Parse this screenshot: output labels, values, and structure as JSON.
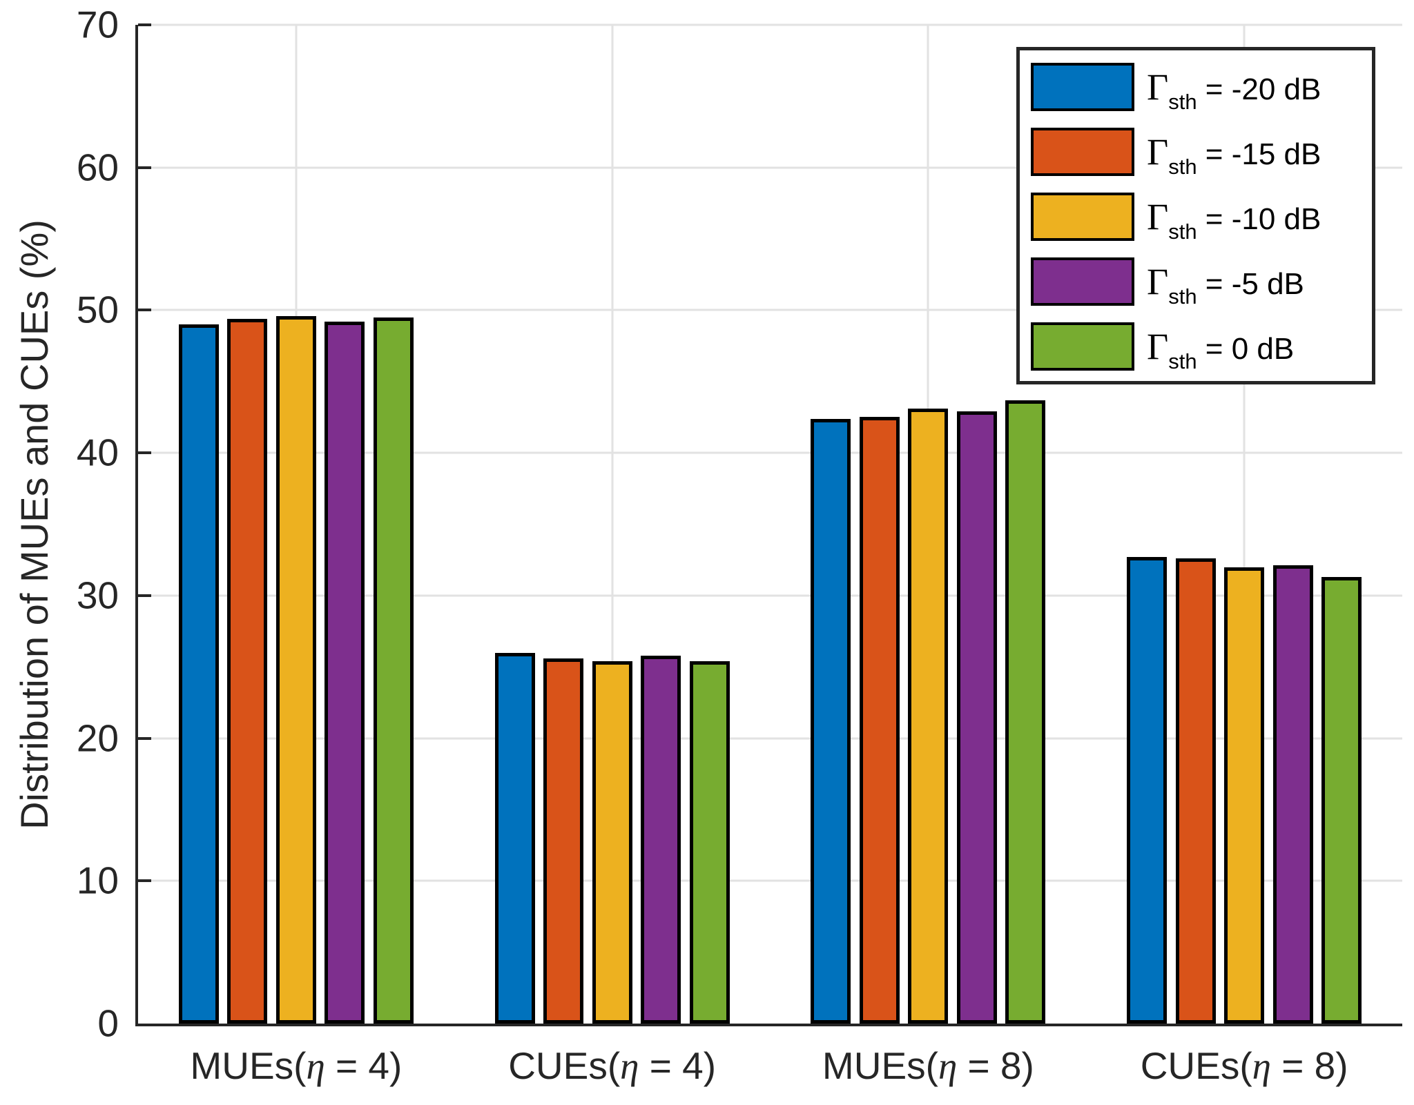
{
  "chart_data": {
    "type": "bar",
    "title": "",
    "xlabel": "",
    "ylabel": "Distribution of MUEs and CUEs (%)",
    "ylim": [
      0,
      70
    ],
    "yticks": [
      0,
      10,
      20,
      30,
      40,
      50,
      60,
      70
    ],
    "grid": true,
    "legend_position": "top-right",
    "categories": [
      {
        "pre": "MUEs(",
        "sym": "η",
        "post": " = 4)"
      },
      {
        "pre": "CUEs(",
        "sym": "η",
        "post": " = 4)"
      },
      {
        "pre": "MUEs(",
        "sym": "η",
        "post": " = 8)"
      },
      {
        "pre": "CUEs(",
        "sym": "η",
        "post": " = 8)"
      }
    ],
    "series": [
      {
        "symbol": "Γ",
        "subscript": "sth",
        "label": " = -20 dB",
        "color": "#0072BD",
        "values": [
          49.0,
          26.0,
          42.4,
          32.7
        ]
      },
      {
        "symbol": "Γ",
        "subscript": "sth",
        "label": " = -15 dB",
        "color": "#D95319",
        "values": [
          49.4,
          25.6,
          42.5,
          32.6
        ]
      },
      {
        "symbol": "Γ",
        "subscript": "sth",
        "label": " = -10 dB",
        "color": "#EDB120",
        "values": [
          49.6,
          25.4,
          43.1,
          32.0
        ]
      },
      {
        "symbol": "Γ",
        "subscript": "sth",
        "label": " = -5 dB",
        "color": "#7E2F8E",
        "values": [
          49.2,
          25.8,
          42.9,
          32.1
        ]
      },
      {
        "symbol": "Γ",
        "subscript": "sth",
        "label": " = 0 dB",
        "color": "#77AC30",
        "values": [
          49.5,
          25.4,
          43.7,
          31.3
        ]
      }
    ]
  },
  "style": {
    "axis_color": "#262626",
    "grid_color": "#e2e2e2",
    "bar_edge_color": "#000000",
    "background": "#ffffff"
  }
}
